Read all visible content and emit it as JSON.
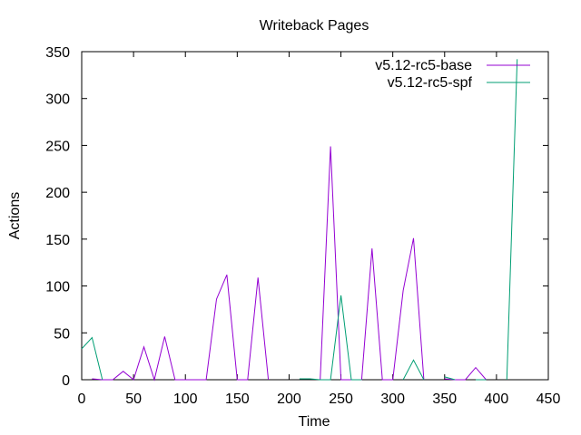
{
  "chart_data": {
    "type": "line",
    "title": "Writeback Pages",
    "xlabel": "Time",
    "ylabel": "Actions",
    "xlim": [
      0,
      450
    ],
    "ylim": [
      0,
      350
    ],
    "xticks": [
      0,
      50,
      100,
      150,
      200,
      250,
      300,
      350,
      400,
      450
    ],
    "yticks": [
      0,
      50,
      100,
      150,
      200,
      250,
      300,
      350
    ],
    "grid": false,
    "legend_position": "top-right",
    "series": [
      {
        "name": "v5.12-rc5-base",
        "color": "#9400d3",
        "x": [
          0,
          10,
          20,
          30,
          40,
          50,
          60,
          70,
          80,
          90,
          100,
          110,
          120,
          130,
          140,
          150,
          160,
          170,
          180,
          190,
          200,
          210,
          220,
          230,
          240,
          250,
          260,
          270,
          280,
          290,
          300,
          310,
          320,
          330,
          340,
          350,
          360,
          370,
          380,
          390
        ],
        "y": [
          null,
          1,
          0,
          0,
          9,
          0,
          35,
          0,
          46,
          0,
          0,
          0,
          0,
          86,
          112,
          0,
          0,
          109,
          0,
          null,
          null,
          null,
          null,
          0,
          249,
          0,
          0,
          0,
          140,
          0,
          0,
          95,
          151,
          0,
          null,
          1,
          0,
          0,
          13,
          0
        ]
      },
      {
        "name": "v5.12-rc5-spf",
        "color": "#009e73",
        "x": [
          0,
          10,
          20,
          200,
          210,
          220,
          230,
          240,
          250,
          260,
          270,
          300,
          310,
          320,
          330,
          340,
          350,
          360,
          370,
          380,
          390,
          400,
          410,
          420
        ],
        "y": [
          33,
          45,
          0,
          null,
          1,
          1,
          0,
          0,
          90,
          0,
          0,
          null,
          0,
          21,
          0,
          null,
          3,
          0,
          null,
          0,
          0,
          null,
          0,
          342
        ]
      }
    ]
  }
}
